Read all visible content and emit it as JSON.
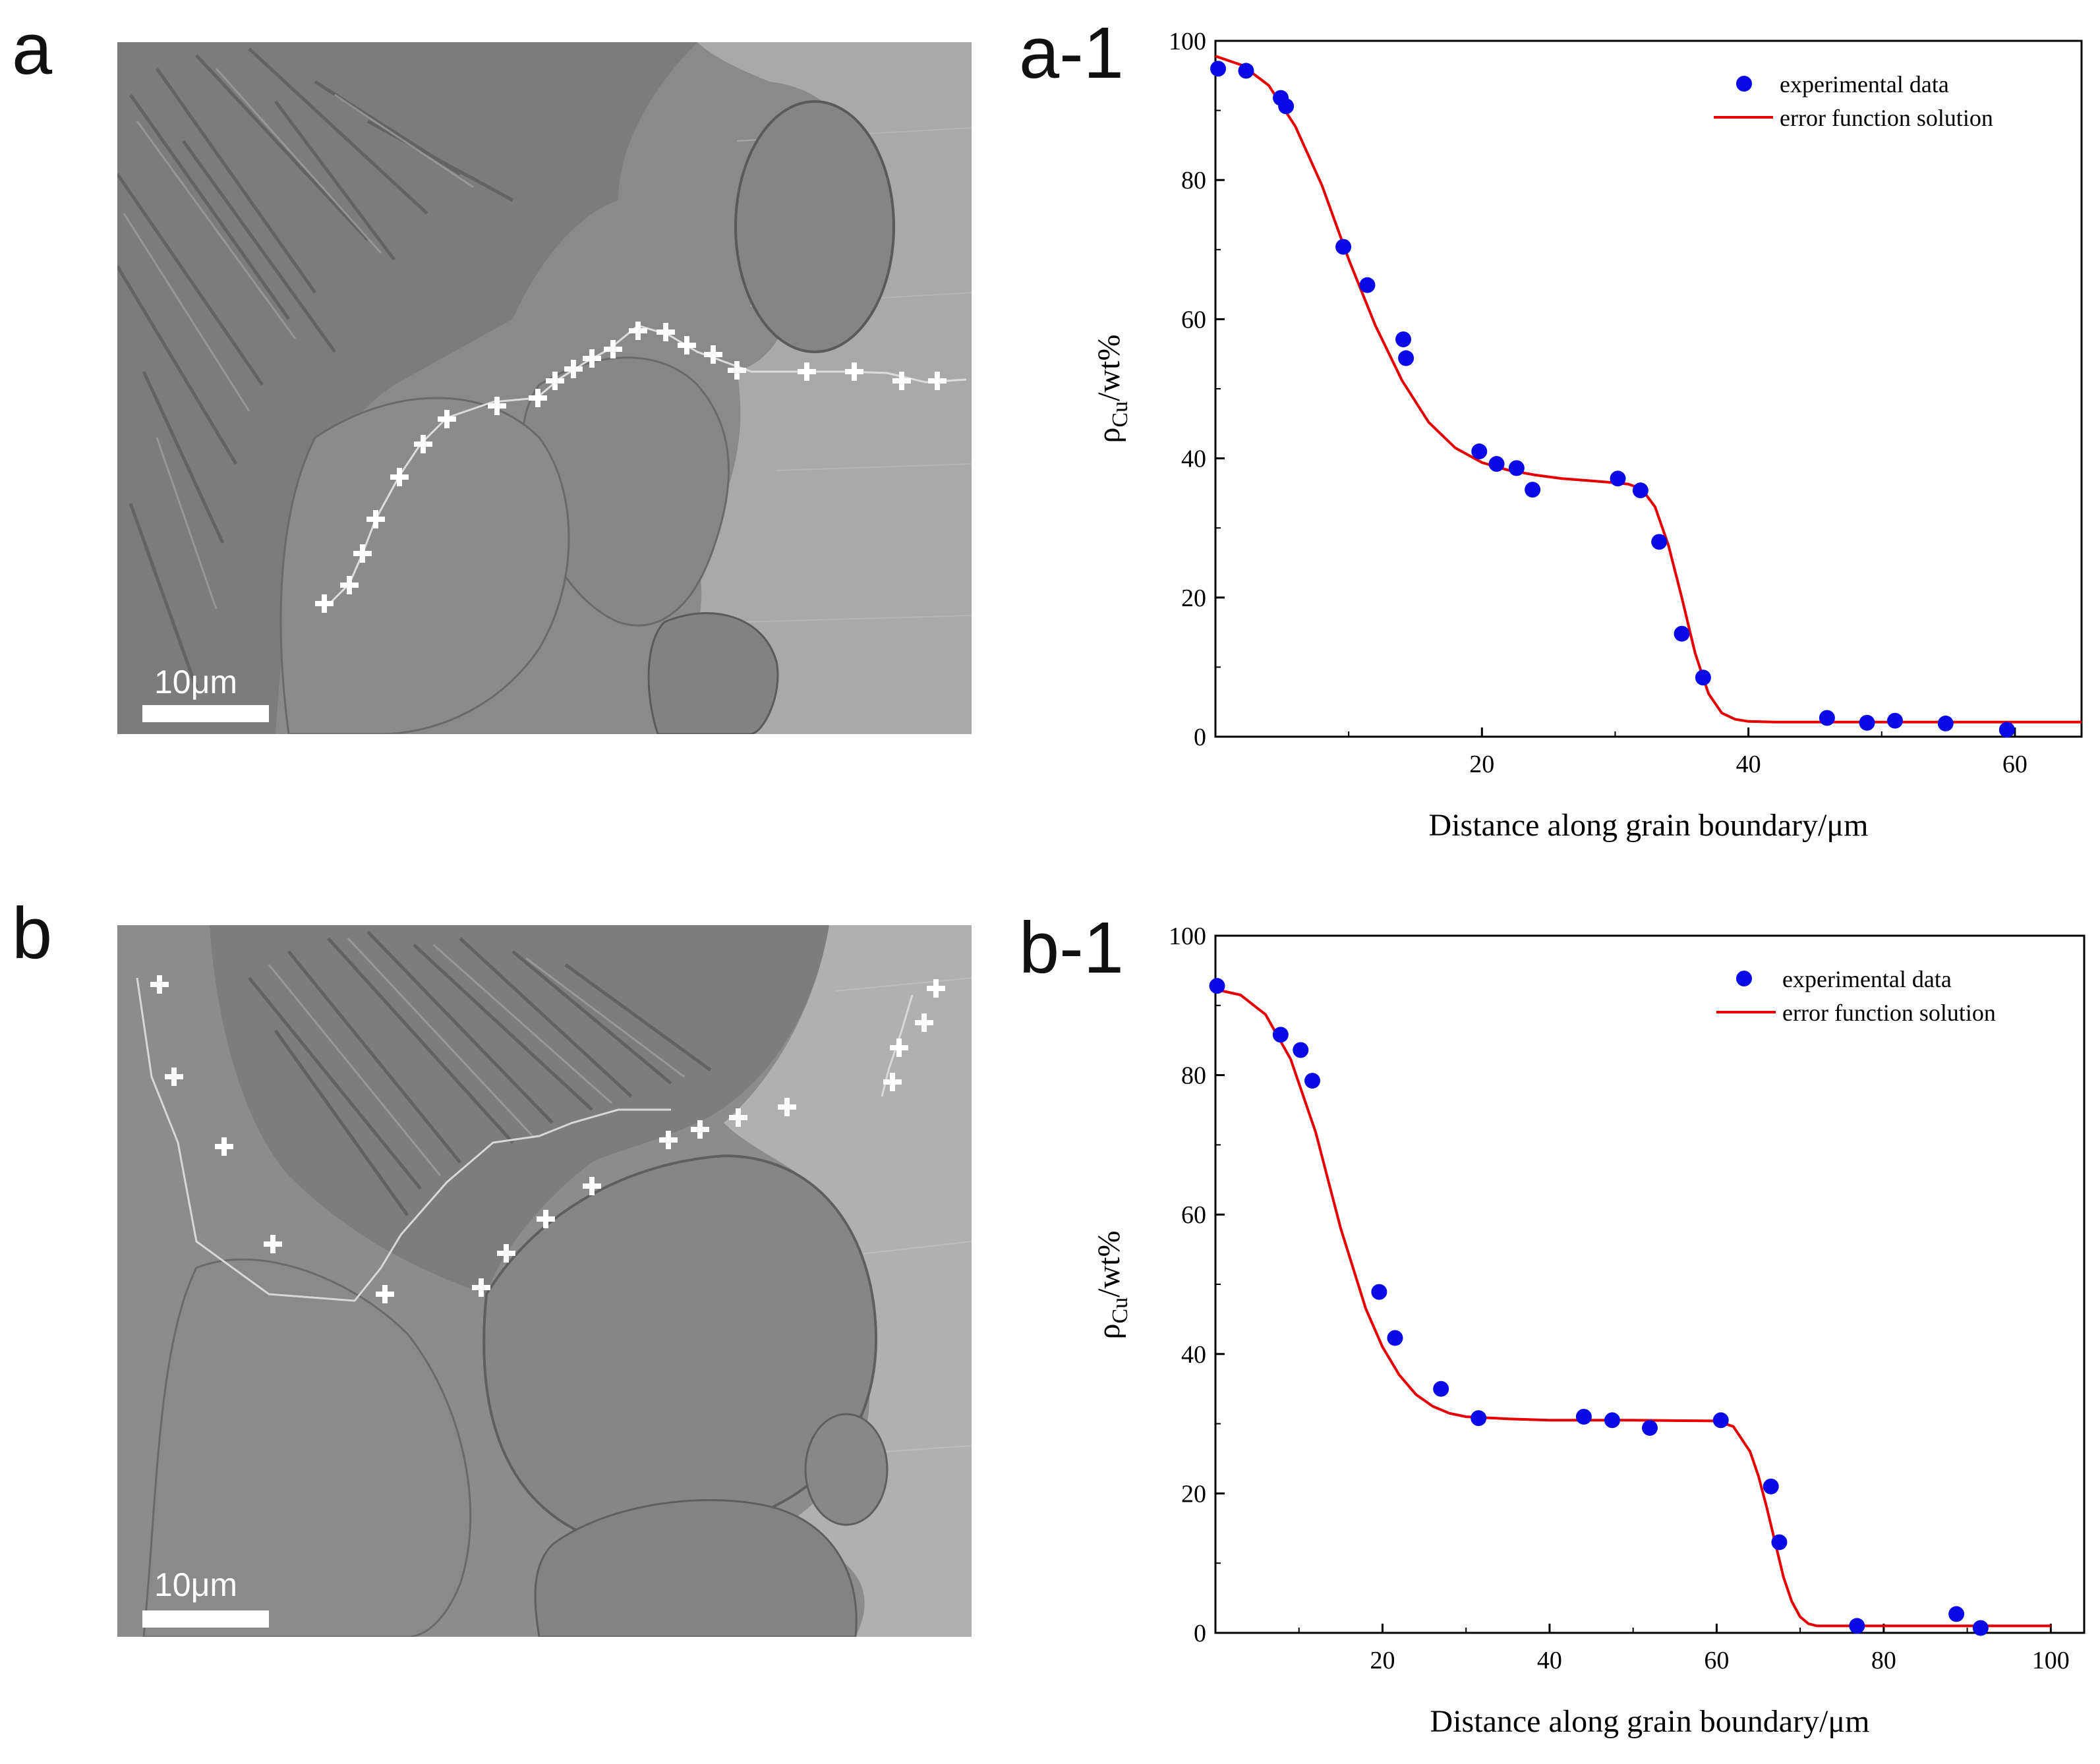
{
  "panels": {
    "a": {
      "letter": "a",
      "scale_label": "10μm"
    },
    "b": {
      "letter": "b",
      "scale_label": "10μm"
    }
  },
  "colors": {
    "points": "#0a0ae6",
    "fit": "#e60000",
    "axis": "#000000"
  },
  "chart_data": [
    {
      "id": "a-1",
      "panel_label": "a-1",
      "type": "scatter",
      "ylabel_main": "ρ",
      "ylabel_sub": "Cu",
      "ylabel_unit": "/wt%",
      "xlabel": "Distance along grain boundary/μm",
      "xlim": [
        0,
        65
      ],
      "ylim": [
        0,
        100
      ],
      "xticks": [
        20,
        40,
        60
      ],
      "yticks": [
        0,
        20,
        40,
        60,
        80,
        100
      ],
      "legend": {
        "position": "top-right",
        "points_label": "experimental data",
        "line_label": "error function solution"
      },
      "series": [
        {
          "name": "experimental data",
          "x": [
            0.2,
            2.3,
            4.9,
            5.3,
            9.6,
            11.4,
            14.1,
            14.3,
            19.8,
            21.1,
            22.6,
            23.8,
            30.2,
            31.9,
            33.3,
            35.0,
            36.6,
            45.9,
            48.9,
            51.0,
            54.8,
            59.4
          ],
          "y": [
            96.0,
            95.7,
            91.8,
            90.6,
            70.4,
            64.9,
            57.1,
            54.4,
            41.0,
            39.2,
            38.6,
            35.5,
            37.1,
            35.4,
            28.0,
            14.8,
            8.5,
            2.7,
            2.0,
            2.3,
            1.9,
            1.0
          ]
        },
        {
          "name": "error function solution",
          "x": [
            0,
            2,
            4,
            6,
            8,
            10,
            12,
            14,
            16,
            18,
            20,
            22,
            24,
            26,
            28,
            30,
            31,
            32,
            33,
            34,
            35,
            36,
            37,
            38,
            39,
            40,
            42,
            45,
            50,
            55,
            60,
            65
          ],
          "y": [
            97.8,
            96.5,
            93.6,
            87.7,
            79.2,
            68.6,
            59.1,
            51.2,
            45.2,
            41.5,
            39.4,
            38.3,
            37.6,
            37.1,
            36.8,
            36.5,
            36.3,
            35.6,
            33.0,
            27.5,
            20.0,
            12.0,
            6.2,
            3.4,
            2.5,
            2.2,
            2.1,
            2.1,
            2.1,
            2.1,
            2.1,
            2.1
          ]
        }
      ]
    },
    {
      "id": "b-1",
      "panel_label": "b-1",
      "type": "scatter",
      "ylabel_main": "ρ",
      "ylabel_sub": "Cu",
      "ylabel_unit": "/wt%",
      "xlabel": "Distance along grain boundary/μm",
      "xlim": [
        0,
        104
      ],
      "ylim": [
        0,
        100
      ],
      "xticks": [
        20,
        40,
        60,
        80,
        100
      ],
      "yticks": [
        0,
        20,
        40,
        60,
        80,
        100
      ],
      "legend": {
        "position": "top-right",
        "points_label": "experimental data",
        "line_label": "error function solution"
      },
      "series": [
        {
          "name": "experimental data",
          "x": [
            0.2,
            7.8,
            10.2,
            11.6,
            19.6,
            21.5,
            27.0,
            31.5,
            44.1,
            47.5,
            52.0,
            60.5,
            66.5,
            67.5,
            76.8,
            88.7,
            91.6
          ],
          "y": [
            92.8,
            85.8,
            83.6,
            79.2,
            48.9,
            42.3,
            35.0,
            30.8,
            31.0,
            30.5,
            29.4,
            30.5,
            21.0,
            13.0,
            1.0,
            2.7,
            0.7
          ]
        },
        {
          "name": "error function solution",
          "x": [
            0,
            3,
            6,
            9,
            12,
            15,
            18,
            20,
            22,
            24,
            26,
            28,
            30,
            35,
            40,
            50,
            60,
            62,
            64,
            65,
            66,
            67,
            68,
            69,
            70,
            71,
            72,
            75,
            80,
            90,
            100
          ],
          "y": [
            92.3,
            91.5,
            88.7,
            82.3,
            71.8,
            58.0,
            46.5,
            41.0,
            37.0,
            34.2,
            32.5,
            31.5,
            31.0,
            30.7,
            30.5,
            30.5,
            30.4,
            29.6,
            26.0,
            22.5,
            18.0,
            13.0,
            8.0,
            4.5,
            2.3,
            1.3,
            1.0,
            1.0,
            1.0,
            1.0,
            1.0
          ]
        }
      ]
    }
  ]
}
